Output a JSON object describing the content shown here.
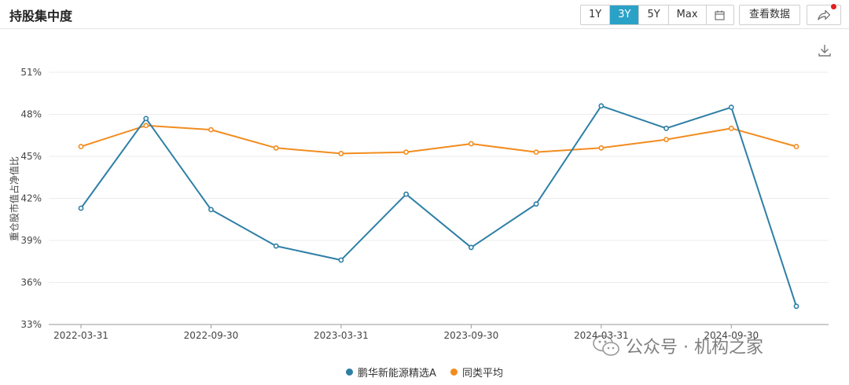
{
  "header": {
    "title": "持股集中度",
    "ranges": [
      "1Y",
      "3Y",
      "5Y",
      "Max"
    ],
    "active_range": "3Y",
    "view_data_label": "查看数据"
  },
  "colors": {
    "accent": "#2aa2c7",
    "series1": "#2e7fa6",
    "series2": "#f28c1f",
    "notification": "#e02020"
  },
  "icons": {
    "calendar": "calendar-icon",
    "share": "share-icon",
    "download": "download-icon",
    "watermark": "wechat-icon"
  },
  "watermark": {
    "text": "公众号 · 机构之家"
  },
  "chart_data": {
    "type": "line",
    "ylabel": "重仓股市值占净值比",
    "ylim": [
      33,
      51
    ],
    "yticks": [
      33,
      36,
      39,
      42,
      45,
      48,
      51
    ],
    "ytick_labels": [
      "33%",
      "36%",
      "39%",
      "42%",
      "45%",
      "48%",
      "51%"
    ],
    "x": [
      "2022-03-31",
      "2022-06-30",
      "2022-09-30",
      "2022-12-31",
      "2023-03-31",
      "2023-06-30",
      "2023-09-30",
      "2023-12-31",
      "2024-03-31",
      "2024-06-30",
      "2024-09-30",
      "2024-12-31"
    ],
    "xtick_labels": [
      "2022-03-31",
      "2022-09-30",
      "2023-03-31",
      "2023-09-30",
      "2024-03-31",
      "2024-09-30"
    ],
    "grid": true,
    "legend_position": "bottom",
    "series": [
      {
        "name": "鹏华新能源精选A",
        "values": [
          41.3,
          47.7,
          41.2,
          38.6,
          37.6,
          42.3,
          38.5,
          41.6,
          48.6,
          47.0,
          48.5,
          34.3
        ]
      },
      {
        "name": "同类平均",
        "values": [
          45.7,
          47.2,
          46.9,
          45.6,
          45.2,
          45.3,
          45.9,
          45.3,
          45.6,
          46.2,
          47.0,
          45.7
        ]
      }
    ]
  }
}
